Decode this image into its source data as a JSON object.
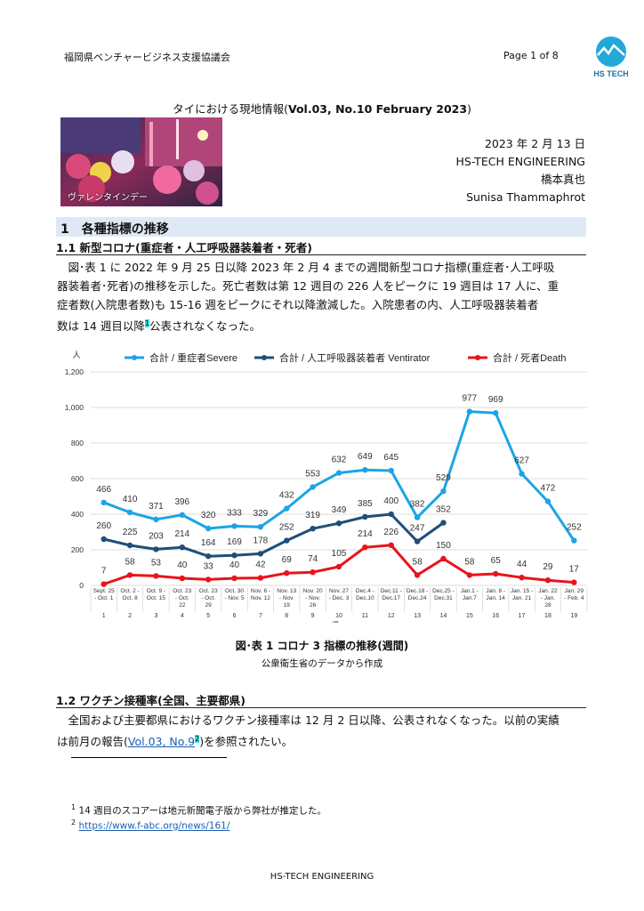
{
  "header": {
    "org": "福岡県ベンチャービジネス支援協議会",
    "page": "Page 1 of 8",
    "logo_text": "HS TECH"
  },
  "title": {
    "prefix": "タイにおける現地情報(",
    "bold": "Vol.03, No.10  February 2023",
    "suffix": ")"
  },
  "photo_caption": "ヴァレンタインデー",
  "meta": {
    "date": "2023 年 2 月 13 日",
    "company": "HS-TECH ENGINEERING",
    "author1": "橋本真也",
    "author2": "Sunisa Thammaphrot"
  },
  "section1": {
    "title": "1　各種指標の推移",
    "sub1": "1.1 新型コロナ(重症者・人工呼吸器装着者・死者)",
    "para1_line1": "　図･表 1 に 2022 年 9 月 25 日以降 2023 年 2 月 4 までの週間新型コロナ指標(重症者･人工呼吸",
    "para1_line2": "器装着者･死者)の推移を示した。死亡者数は第 12 週目の 226 人をピークに 19 週目は 17 人に、重",
    "para1_line3": "症者数(入院患者数)も 15-16 週をピークにそれ以降激減した。入院患者の内、人工呼吸器装着者",
    "para1_line4a": "数は 14 週目以降",
    "para1_fn": "1",
    "para1_line4b": "公表されなくなった。"
  },
  "chart_data": {
    "type": "line",
    "ylabel": "人",
    "xlabel": "週",
    "ylim": [
      0,
      1200
    ],
    "yticks": [
      "0",
      "200",
      "400",
      "600",
      "800",
      "1,000",
      "1,200"
    ],
    "categories": [
      [
        "Sept. 25",
        "- Oct. 1"
      ],
      [
        "Oct. 2 -",
        "Oct. 8"
      ],
      [
        "Oct. 9 -",
        "Oct. 15"
      ],
      [
        "Oct. 23",
        "- Oct.",
        "22"
      ],
      [
        "Oct. 23",
        "- Oct.",
        "29"
      ],
      [
        "Oct. 30",
        "- Nov. 5"
      ],
      [
        "Nov. 6 -",
        "Nov. 12"
      ],
      [
        "Nov. 13",
        "- Nov.",
        "19"
      ],
      [
        "Nov. 20",
        "- Nov.",
        "26"
      ],
      [
        "Nov. 27",
        "- Dec. 3"
      ],
      [
        "Dec.4 -",
        "Dec.10"
      ],
      [
        "Dec.11 -",
        "Dec.17"
      ],
      [
        "Dec.18 -",
        "Dec.24"
      ],
      [
        "Dec.25 -",
        "Dec.31"
      ],
      [
        "Jan.1 -",
        "Jan.7"
      ],
      [
        "Jan. 8 -",
        "Jan. 14"
      ],
      [
        "Jan. 15 -",
        "Jan. 21"
      ],
      [
        "Jan. 22",
        "- Jan.",
        "28"
      ],
      [
        "Jan. 29",
        "- Feb. 4"
      ]
    ],
    "weeks": [
      "1",
      "2",
      "3",
      "4",
      "5",
      "6",
      "7",
      "8",
      "9",
      "10",
      "11",
      "12",
      "13",
      "14",
      "15",
      "16",
      "17",
      "18",
      "19"
    ],
    "legend_position": "top",
    "series": [
      {
        "name": "合計 / 重症者Severe",
        "color": "#1ca4e6",
        "values": [
          466,
          410,
          371,
          396,
          320,
          333,
          329,
          432,
          553,
          632,
          649,
          645,
          382,
          529,
          977,
          969,
          627,
          472,
          252
        ]
      },
      {
        "name": "合計 / 人工呼吸器装着者 Ventirator",
        "color": "#1f4e79",
        "values": [
          260,
          225,
          203,
          214,
          164,
          169,
          178,
          252,
          319,
          349,
          385,
          400,
          247,
          352,
          null,
          null,
          null,
          null,
          null
        ]
      },
      {
        "name": "合計 / 死者Death",
        "color": "#e8141b",
        "values": [
          7,
          58,
          53,
          40,
          33,
          40,
          42,
          69,
          74,
          105,
          214,
          226,
          58,
          150,
          58,
          65,
          44,
          29,
          17
        ]
      }
    ]
  },
  "figure": {
    "caption": "図･表 1 コロナ 3 指標の推移(週間)",
    "source": "公衆衛生省のデータから作成"
  },
  "section12": {
    "title": "1.2 ワクチン接種率(全国、主要都県)",
    "line1": "　全国および主要都県におけるワクチン接種率は 12 月 2 日以降、公表されなくなった。以前の実績",
    "line2a": "は前月の報告(",
    "link": "Vol.03, No.9",
    "fn": "2",
    "line2b": ")を参照されたい。"
  },
  "footnotes": {
    "n1": "1",
    "t1": "14 週目のスコアーは地元新聞電子版から弊社が推定した。",
    "n2": "2",
    "t2": "https://www.f-abc.org/news/161/"
  },
  "footer": "HS-TECH ENGINEERING"
}
